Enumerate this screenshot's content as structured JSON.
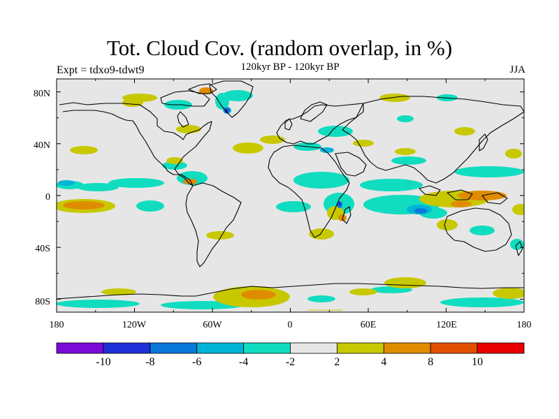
{
  "header": {
    "title": "Tot. Cloud Cov. (random overlap, in %)",
    "subtitle": "120kyr BP - 120kyr BP",
    "experiment": "Expt = tdxo9-tdwt9",
    "season": "JJA"
  },
  "map": {
    "lat_labels": [
      "80N",
      "40N",
      "0",
      "40S",
      "80S"
    ],
    "lon_labels": [
      "180",
      "120W",
      "60W",
      "0",
      "60E",
      "120E",
      "180"
    ],
    "background_color": "#e6e6e6"
  },
  "colorbar": {
    "colors": [
      "#7a0ad8",
      "#2030d8",
      "#0a78d8",
      "#00b4d8",
      "#10dcc0",
      "#e6e6e6",
      "#c8c800",
      "#e08c00",
      "#e05000",
      "#e60000"
    ],
    "labels": [
      "-10",
      "-8",
      "-6",
      "-4",
      "-2",
      "2",
      "4",
      "8",
      "10"
    ]
  }
}
